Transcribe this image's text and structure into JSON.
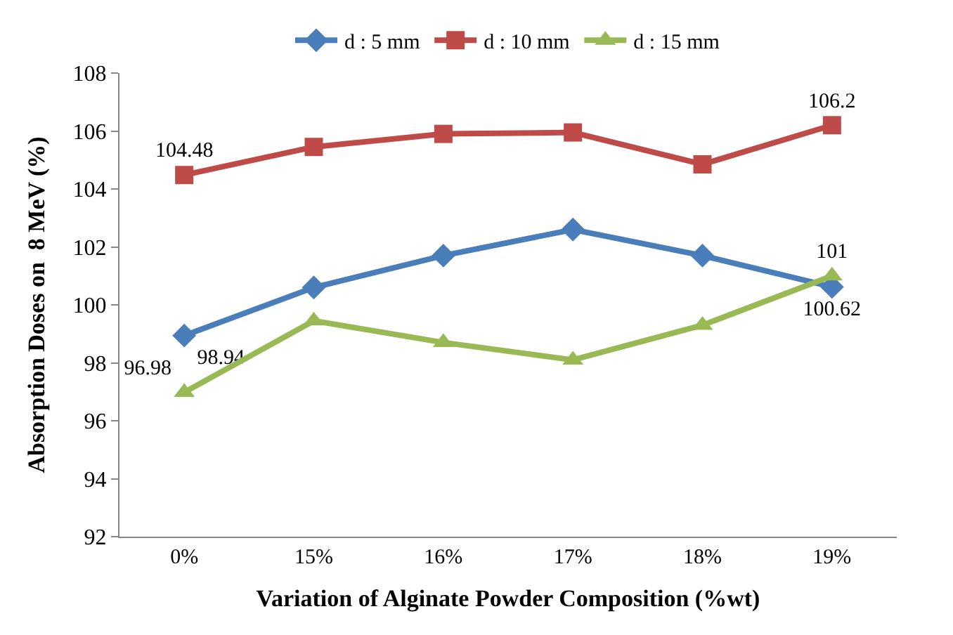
{
  "chart_data": {
    "type": "line",
    "xlabel": "Variation of Alginate Powder Composition (%wt)",
    "ylabel": "Absorption Doses on  8 MeV (%)",
    "categories": [
      "0%",
      "15%",
      "16%",
      "17%",
      "18%",
      "19%"
    ],
    "series": [
      {
        "name": "d : 5 mm",
        "color": "#4a7ebb",
        "marker": "diamond",
        "values": [
          98.94,
          100.6,
          101.7,
          102.6,
          101.7,
          100.62
        ],
        "value_labels": [
          "98.94",
          null,
          null,
          null,
          null,
          "100.62"
        ]
      },
      {
        "name": "d : 10 mm",
        "color": "#be4b48",
        "marker": "square",
        "values": [
          104.48,
          105.45,
          105.9,
          105.95,
          104.85,
          106.2
        ],
        "value_labels": [
          "104.48",
          null,
          null,
          null,
          null,
          "106.2"
        ]
      },
      {
        "name": "d : 15 mm",
        "color": "#98b954",
        "marker": "triangle",
        "values": [
          96.98,
          99.45,
          98.7,
          98.1,
          99.3,
          101
        ],
        "value_labels": [
          "96.98",
          null,
          null,
          null,
          null,
          "101"
        ]
      }
    ],
    "ylim": [
      92,
      108
    ],
    "yticks": [
      92,
      94,
      96,
      98,
      100,
      102,
      104,
      106,
      108
    ],
    "legend": "top"
  }
}
